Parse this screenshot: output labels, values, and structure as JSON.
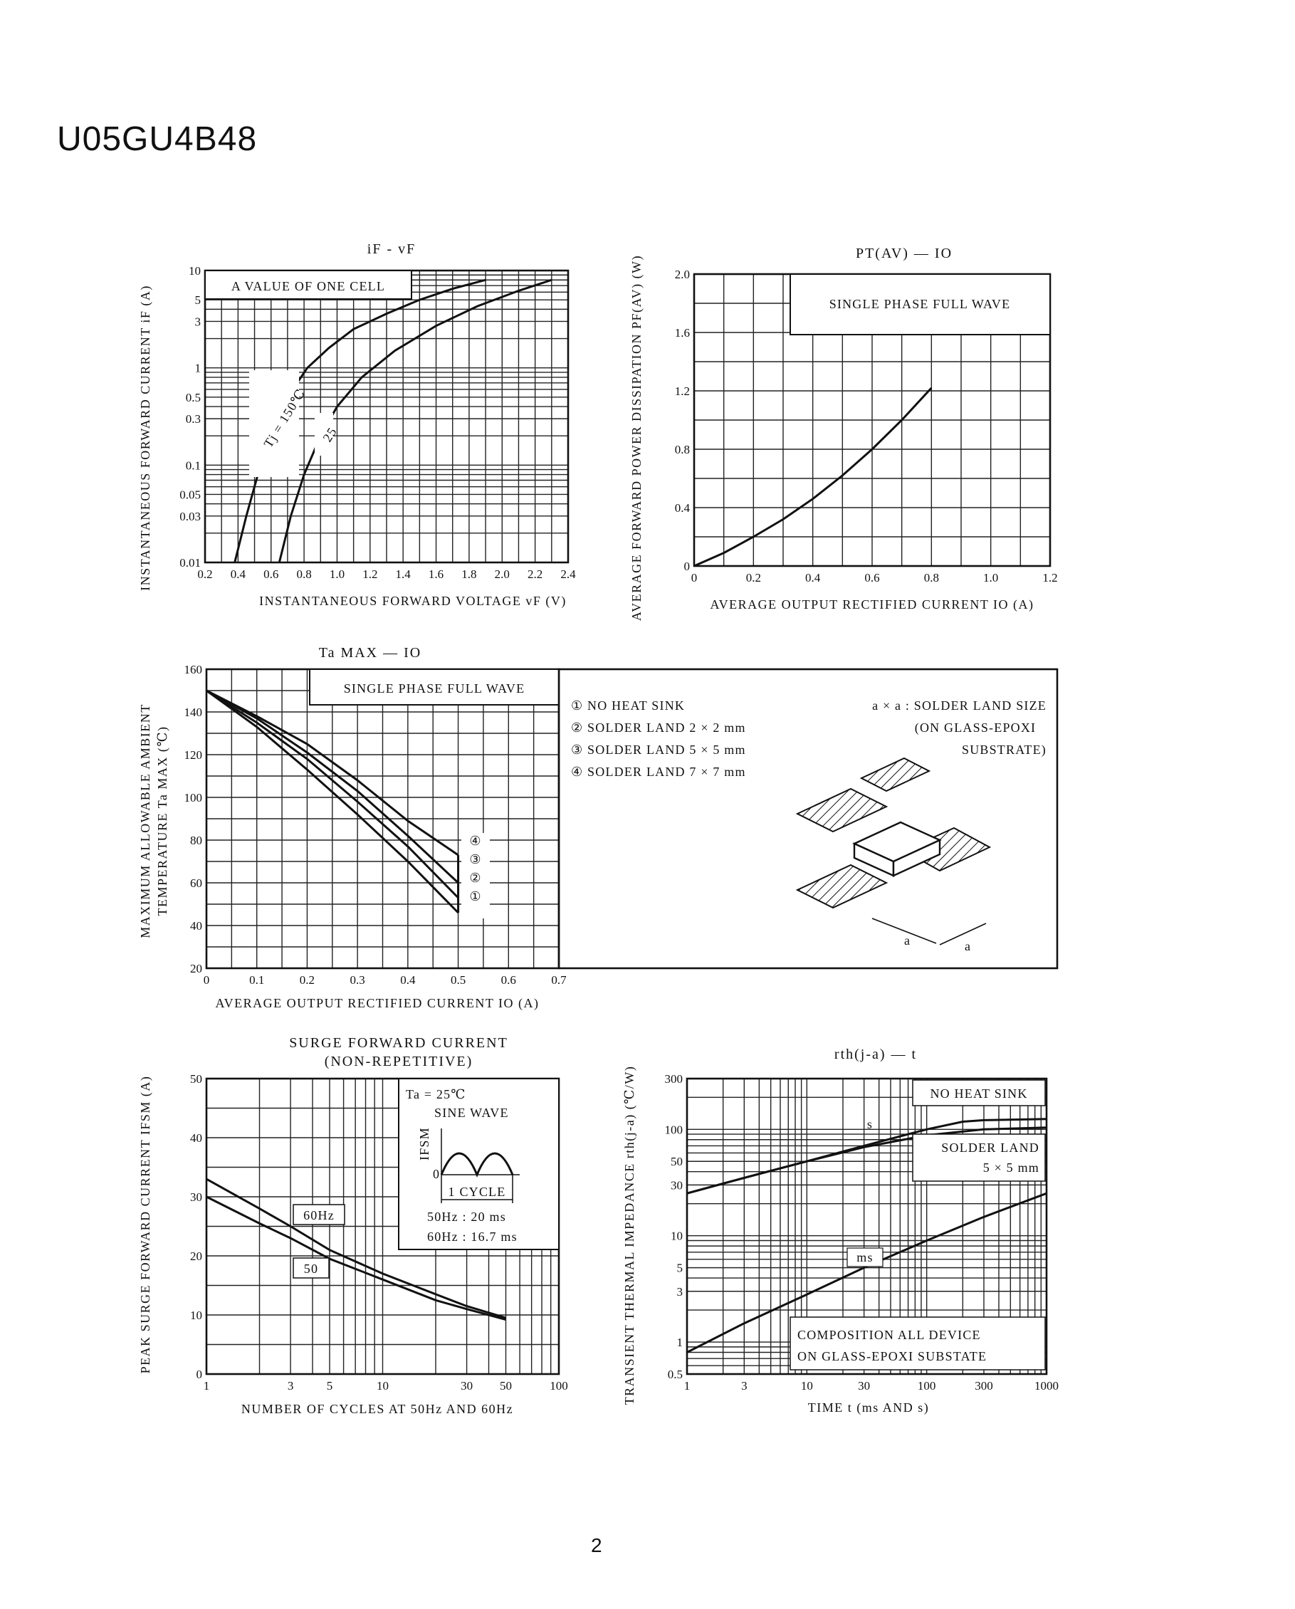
{
  "document": {
    "title": "U05GU4B48",
    "page_number": "2"
  },
  "chart_data": [
    {
      "id": "if_vf",
      "type": "line",
      "title": "iF - vF",
      "xlabel": "INSTANTANEOUS FORWARD VOLTAGE vF (V)",
      "ylabel": "INSTANTANEOUS FORWARD CURRENT iF (A)",
      "x_scale": "linear",
      "y_scale": "log",
      "xlim": [
        0.2,
        2.4
      ],
      "ylim": [
        0.01,
        10
      ],
      "x_ticks": [
        0.2,
        0.4,
        0.6,
        0.8,
        1.0,
        1.2,
        1.4,
        1.6,
        1.8,
        2.0,
        2.2,
        2.4
      ],
      "x_tick_labels": [
        "0.2",
        "0.4",
        "0.6",
        "0.8",
        "1.0",
        "1.2",
        "1.4",
        "1.6",
        "1.8",
        "2.0",
        "2.2",
        "2.4"
      ],
      "y_ticks": [
        0.01,
        0.03,
        0.05,
        0.1,
        0.3,
        0.5,
        1,
        3,
        5,
        10
      ],
      "y_tick_labels": [
        "0.01",
        "0.03",
        "0.05",
        "0.1",
        "0.3",
        "0.5",
        "1",
        "3",
        "5",
        "10"
      ],
      "legend_box": "A VALUE OF ONE CELL",
      "grid": true,
      "series": [
        {
          "name": "Tj = 150℃",
          "x": [
            0.38,
            0.45,
            0.52,
            0.6,
            0.7,
            0.82,
            0.95,
            1.1,
            1.3,
            1.5,
            1.7,
            1.9
          ],
          "y": [
            0.01,
            0.03,
            0.08,
            0.2,
            0.5,
            1.0,
            1.6,
            2.5,
            3.6,
            5.0,
            6.5,
            8.0
          ]
        },
        {
          "name": "25",
          "x": [
            0.65,
            0.72,
            0.8,
            0.9,
            1.0,
            1.15,
            1.35,
            1.6,
            1.85,
            2.1,
            2.3
          ],
          "y": [
            0.01,
            0.03,
            0.08,
            0.2,
            0.4,
            0.8,
            1.5,
            2.7,
            4.3,
            6.2,
            8.0
          ]
        }
      ]
    },
    {
      "id": "pt_io",
      "type": "line",
      "title": "PT(AV) — IO",
      "xlabel": "AVERAGE OUTPUT RECTIFIED CURRENT IO (A)",
      "ylabel": "AVERAGE FORWARD POWER DISSIPATION PF(AV) (W)",
      "xlim": [
        0,
        1.2
      ],
      "ylim": [
        0,
        2.0
      ],
      "x_ticks": [
        0,
        0.2,
        0.4,
        0.6,
        0.8,
        1.0,
        1.2
      ],
      "x_tick_labels": [
        "0",
        "0.2",
        "0.4",
        "0.6",
        "0.8",
        "1.0",
        "1.2"
      ],
      "y_ticks": [
        0,
        0.4,
        0.8,
        1.2,
        1.6,
        2.0
      ],
      "y_tick_labels": [
        "0",
        "0.4",
        "0.8",
        "1.2",
        "1.6",
        "2.0"
      ],
      "legend_box": "SINGLE PHASE FULL WAVE",
      "grid": true,
      "series": [
        {
          "name": "",
          "x": [
            0,
            0.1,
            0.2,
            0.3,
            0.4,
            0.5,
            0.6,
            0.7,
            0.8
          ],
          "y": [
            0,
            0.09,
            0.2,
            0.32,
            0.46,
            0.62,
            0.8,
            1.0,
            1.22
          ]
        }
      ]
    },
    {
      "id": "ta_io",
      "type": "line",
      "title": "Ta MAX — IO",
      "xlabel": "AVERAGE OUTPUT RECTIFIED CURRENT IO (A)",
      "ylabel_lines": [
        "MAXIMUM ALLOWABLE AMBIENT",
        "TEMPERATURE Ta MAX (℃)"
      ],
      "xlim": [
        0,
        0.7
      ],
      "ylim": [
        20,
        160
      ],
      "x_ticks": [
        0,
        0.1,
        0.2,
        0.3,
        0.4,
        0.5,
        0.6,
        0.7
      ],
      "x_tick_labels": [
        "0",
        "0.1",
        "0.2",
        "0.3",
        "0.4",
        "0.5",
        "0.6",
        "0.7"
      ],
      "y_ticks": [
        20,
        40,
        60,
        80,
        100,
        120,
        140,
        160
      ],
      "y_tick_labels": [
        "20",
        "40",
        "60",
        "80",
        "100",
        "120",
        "140",
        "160"
      ],
      "legend_box": "SINGLE PHASE FULL WAVE",
      "grid": true,
      "series": [
        {
          "name": "①",
          "x": [
            0,
            0.1,
            0.2,
            0.3,
            0.4,
            0.5
          ],
          "y": [
            150,
            133,
            113,
            92,
            70,
            46
          ]
        },
        {
          "name": "②",
          "x": [
            0,
            0.1,
            0.2,
            0.3,
            0.4,
            0.5
          ],
          "y": [
            150,
            135,
            118,
            98,
            77,
            53
          ]
        },
        {
          "name": "③",
          "x": [
            0,
            0.1,
            0.2,
            0.3,
            0.4,
            0.5
          ],
          "y": [
            150,
            137,
            121,
            103,
            82,
            60
          ]
        },
        {
          "name": "④",
          "x": [
            0,
            0.1,
            0.2,
            0.3,
            0.4,
            0.5
          ],
          "y": [
            150,
            138,
            125,
            108,
            89,
            73
          ]
        }
      ],
      "series_labels": [
        "④",
        "③",
        "②",
        "①"
      ],
      "side_legend": {
        "items": [
          "① NO HEAT SINK",
          "② SOLDER LAND  2 × 2 mm",
          "③ SOLDER LAND  5 × 5 mm",
          "④ SOLDER LAND  7 × 7 mm"
        ],
        "note_lines": [
          "a × a : SOLDER LAND SIZE",
          "(ON GLASS-EPOXI",
          "SUBSTRATE)"
        ],
        "figure_label": "a"
      }
    },
    {
      "id": "surge",
      "type": "line",
      "title_lines": [
        "SURGE FORWARD CURRENT",
        "(NON-REPETITIVE)"
      ],
      "xlabel": "NUMBER OF CYCLES AT 50Hz AND 60Hz",
      "ylabel": "PEAK SURGE FORWARD CURRENT IFSM (A)",
      "x_scale": "log",
      "xlim": [
        1,
        100
      ],
      "ylim": [
        0,
        50
      ],
      "x_ticks": [
        1,
        3,
        5,
        10,
        30,
        50,
        100
      ],
      "x_tick_labels": [
        "1",
        "3",
        "5",
        "10",
        "30",
        "50",
        "100"
      ],
      "y_ticks": [
        0,
        10,
        20,
        30,
        40,
        50
      ],
      "y_tick_labels": [
        "0",
        "10",
        "20",
        "30",
        "40",
        "50"
      ],
      "grid": true,
      "series": [
        {
          "name": "60Hz",
          "x": [
            1,
            2,
            3,
            5,
            10,
            20,
            30,
            50
          ],
          "y": [
            33,
            28,
            25,
            21,
            17,
            13.5,
            11.5,
            9.5
          ]
        },
        {
          "name": "50",
          "x": [
            1,
            2,
            3,
            5,
            10,
            20,
            30,
            50
          ],
          "y": [
            30,
            25.5,
            23,
            19.5,
            16,
            12.5,
            11,
            9.2
          ]
        }
      ],
      "inset": {
        "lines": [
          "Ta = 25℃",
          "SINE WAVE",
          "1 CYCLE",
          "50Hz : 20 ms",
          "60Hz : 16.7 ms"
        ],
        "axis_label": "IFSM",
        "zero_label": "0"
      }
    },
    {
      "id": "rth",
      "type": "line",
      "title": "rth(j-a) — t",
      "xlabel": "TIME t (ms AND s)",
      "ylabel": "TRANSIENT THERMAL IMPEDANCE rth(j-a) (℃/W)",
      "x_scale": "log",
      "y_scale": "log",
      "xlim": [
        1,
        1000
      ],
      "ylim": [
        0.5,
        300
      ],
      "x_ticks": [
        1,
        3,
        10,
        30,
        100,
        300,
        1000
      ],
      "x_tick_labels": [
        "1",
        "3",
        "10",
        "30",
        "100",
        "300",
        "1000"
      ],
      "y_ticks": [
        0.5,
        1,
        3,
        5,
        10,
        30,
        50,
        100,
        300
      ],
      "y_tick_labels": [
        "0.5",
        "1",
        "3",
        "5",
        "10",
        "30",
        "50",
        "100",
        "300"
      ],
      "grid": true,
      "series": [
        {
          "name": "s",
          "x": [
            1,
            3,
            10,
            30,
            100,
            200,
            300,
            1000
          ],
          "y": [
            25,
            35,
            50,
            70,
            100,
            118,
            122,
            125
          ]
        },
        {
          "name": "s",
          "x": [
            1,
            3,
            10,
            30,
            100,
            300,
            1000
          ],
          "y": [
            25,
            35,
            50,
            68,
            88,
            100,
            104
          ]
        },
        {
          "name": "ms",
          "x": [
            1,
            3,
            10,
            30,
            100,
            300,
            1000
          ],
          "y": [
            0.8,
            1.5,
            2.8,
            5,
            9,
            15,
            25
          ]
        }
      ],
      "notes": [
        "NO HEAT SINK",
        "SOLDER LAND",
        "5 × 5 mm",
        "COMPOSITION ALL DEVICE",
        "ON GLASS-EPOXI SUBSTATE"
      ]
    }
  ]
}
